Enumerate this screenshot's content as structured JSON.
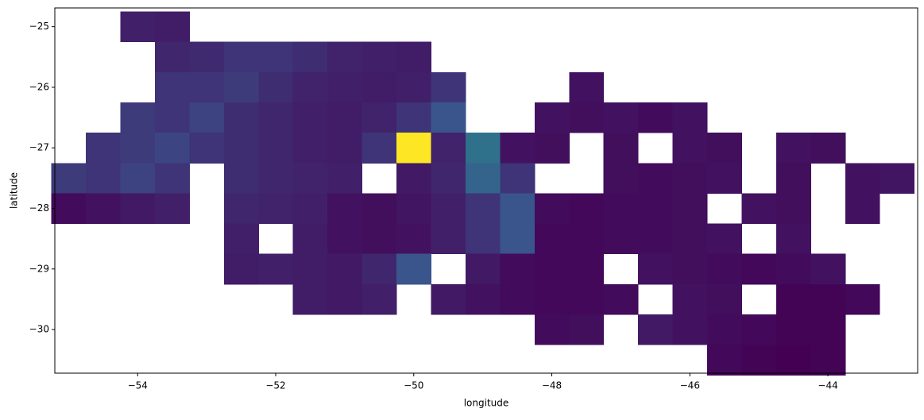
{
  "chart_data": {
    "type": "heatmap",
    "xlabel": "longitude",
    "ylabel": "latitude",
    "colormap": "viridis",
    "xlim": [
      -55.2,
      -42.7
    ],
    "ylim": [
      -30.72,
      -24.69
    ],
    "xticks": [
      {
        "value": -54,
        "label": "−54"
      },
      {
        "value": -52,
        "label": "−52"
      },
      {
        "value": -50,
        "label": "−50"
      },
      {
        "value": -48,
        "label": "−48"
      },
      {
        "value": -46,
        "label": "−46"
      },
      {
        "value": -44,
        "label": "−44"
      }
    ],
    "yticks": [
      {
        "value": -25,
        "label": "−25"
      },
      {
        "value": -26,
        "label": "−26"
      },
      {
        "value": -27,
        "label": "−27"
      },
      {
        "value": -28,
        "label": "−28"
      },
      {
        "value": -29,
        "label": "−29"
      },
      {
        "value": -30,
        "label": "−30"
      }
    ],
    "x": [
      -55,
      -54.5,
      -54,
      -53.5,
      -53,
      -52.5,
      -52,
      -51.5,
      -51,
      -50.5,
      -50,
      -49.5,
      -49,
      -48.5,
      -48,
      -47.5,
      -47,
      -46.5,
      -46,
      -45.5,
      -45,
      -44.5,
      -44,
      -43.5,
      -43
    ],
    "y": [
      -25,
      -25.5,
      -26,
      -26.5,
      -27,
      -27.5,
      -28,
      -28.5,
      -29,
      -29.5,
      -30,
      -30.5
    ],
    "values": [
      [
        null,
        null,
        0.14,
        0.13,
        null,
        null,
        null,
        null,
        null,
        null,
        null,
        null,
        null,
        null,
        null,
        null,
        null,
        null,
        null,
        null,
        null,
        null,
        null,
        null,
        null
      ],
      [
        null,
        null,
        null,
        0.16,
        0.17,
        0.2,
        0.2,
        0.18,
        0.15,
        0.14,
        0.13,
        null,
        null,
        null,
        null,
        null,
        null,
        null,
        null,
        null,
        null,
        null,
        null,
        null,
        null
      ],
      [
        null,
        null,
        null,
        0.2,
        0.2,
        0.22,
        0.18,
        0.15,
        0.14,
        0.13,
        0.14,
        0.2,
        null,
        null,
        null,
        0.1,
        null,
        null,
        null,
        null,
        null,
        null,
        null,
        null,
        null
      ],
      [
        null,
        null,
        0.22,
        0.2,
        0.24,
        0.18,
        0.16,
        0.14,
        0.13,
        0.15,
        0.2,
        0.3,
        null,
        null,
        0.1,
        0.09,
        0.1,
        0.08,
        0.1,
        null,
        null,
        null,
        null,
        null,
        null
      ],
      [
        null,
        0.2,
        0.22,
        0.25,
        0.2,
        0.18,
        0.16,
        0.14,
        0.13,
        0.2,
        1.0,
        0.15,
        0.4,
        0.1,
        0.09,
        null,
        0.09,
        null,
        0.1,
        0.09,
        null,
        0.1,
        0.09,
        null,
        null
      ],
      [
        0.22,
        0.2,
        0.24,
        0.2,
        null,
        0.18,
        0.16,
        0.15,
        0.14,
        null,
        0.12,
        0.16,
        0.35,
        0.2,
        null,
        null,
        0.09,
        0.08,
        0.09,
        0.1,
        null,
        0.09,
        null,
        0.1,
        0.11
      ],
      [
        0.08,
        0.1,
        0.12,
        0.14,
        null,
        0.16,
        0.15,
        0.14,
        0.1,
        0.09,
        0.11,
        0.14,
        0.2,
        0.3,
        0.08,
        0.07,
        0.08,
        0.08,
        0.09,
        null,
        0.1,
        0.09,
        null,
        0.1,
        null
      ],
      [
        null,
        null,
        null,
        null,
        null,
        0.14,
        null,
        0.13,
        0.1,
        0.09,
        0.1,
        0.14,
        0.2,
        0.3,
        0.07,
        0.07,
        0.08,
        0.08,
        0.09,
        0.1,
        null,
        0.1,
        null,
        null,
        null
      ],
      [
        null,
        null,
        null,
        null,
        null,
        0.13,
        0.14,
        0.13,
        0.12,
        0.16,
        0.3,
        null,
        0.12,
        0.08,
        0.07,
        0.07,
        null,
        0.1,
        0.09,
        0.08,
        0.07,
        0.08,
        0.1,
        null,
        null
      ],
      [
        null,
        null,
        null,
        null,
        null,
        null,
        null,
        0.13,
        0.12,
        0.14,
        null,
        0.12,
        0.1,
        0.08,
        0.07,
        0.07,
        0.08,
        null,
        0.1,
        0.09,
        null,
        0.06,
        0.06,
        0.07,
        null
      ],
      [
        null,
        null,
        null,
        null,
        null,
        null,
        null,
        null,
        null,
        null,
        null,
        null,
        null,
        null,
        0.08,
        0.09,
        null,
        0.12,
        0.1,
        0.08,
        0.07,
        0.06,
        0.06,
        null,
        null
      ],
      [
        null,
        null,
        null,
        null,
        null,
        null,
        null,
        null,
        null,
        null,
        null,
        null,
        null,
        null,
        null,
        null,
        null,
        null,
        null,
        0.07,
        0.06,
        0.05,
        0.06,
        null,
        null
      ]
    ]
  }
}
